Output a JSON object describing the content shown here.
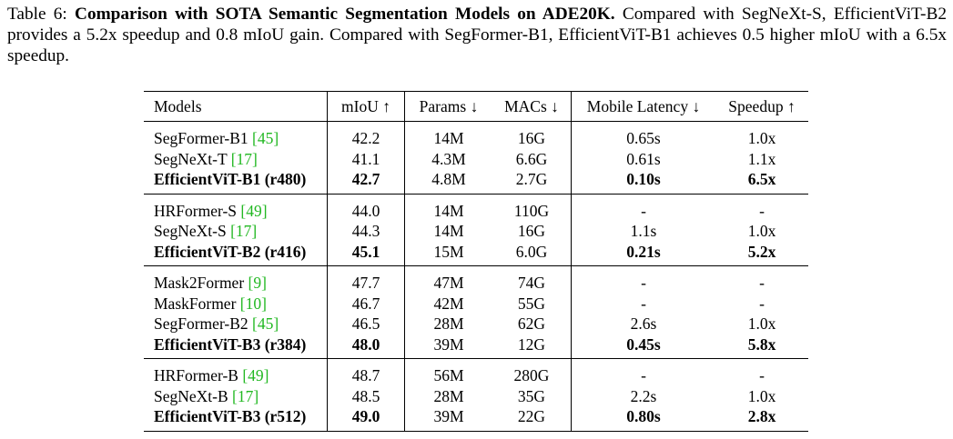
{
  "caption": {
    "prefix": "Table 6: ",
    "title": "Comparison with SOTA Semantic Segmentation Models on ADE20K.",
    "body": " Compared with SegNeXt-S, EfficientViT-B2 provides a 5.2x speedup and 0.8 mIoU gain. Compared with SegFormer-B1, EfficientViT-B1 achieves 0.5 higher mIoU with a 6.5x speedup."
  },
  "headers": {
    "models": "Models",
    "miou": "mIoU ↑",
    "params": "Params ↓",
    "macs": "MACs ↓",
    "latency": "Mobile Latency ↓",
    "speedup": "Speedup ↑"
  },
  "groups": [
    [
      {
        "name": "SegFormer-B1 ",
        "cite": "[45]",
        "miou": "42.2",
        "params": "14M",
        "macs": "16G",
        "latency": "0.65s",
        "speedup": "1.0x",
        "bold": false
      },
      {
        "name": "SegNeXt-T ",
        "cite": "[17]",
        "miou": "41.1",
        "params": "4.3M",
        "macs": "6.6G",
        "latency": "0.61s",
        "speedup": "1.1x",
        "bold": false
      },
      {
        "name": "EfficientViT-B1 (r480)",
        "cite": "",
        "miou": "42.7",
        "params": "4.8M",
        "macs": "2.7G",
        "latency": "0.10s",
        "speedup": "6.5x",
        "bold": true
      }
    ],
    [
      {
        "name": "HRFormer-S ",
        "cite": "[49]",
        "miou": "44.0",
        "params": "14M",
        "macs": "110G",
        "latency": "-",
        "speedup": "-",
        "bold": false
      },
      {
        "name": "SegNeXt-S ",
        "cite": "[17]",
        "miou": "44.3",
        "params": "14M",
        "macs": "16G",
        "latency": "1.1s",
        "speedup": "1.0x",
        "bold": false
      },
      {
        "name": "EfficientViT-B2 (r416)",
        "cite": "",
        "miou": "45.1",
        "params": "15M",
        "macs": "6.0G",
        "latency": "0.21s",
        "speedup": "5.2x",
        "bold": true
      }
    ],
    [
      {
        "name": "Mask2Former ",
        "cite": "[9]",
        "miou": "47.7",
        "params": "47M",
        "macs": "74G",
        "latency": "-",
        "speedup": "-",
        "bold": false
      },
      {
        "name": "MaskFormer ",
        "cite": "[10]",
        "miou": "46.7",
        "params": "42M",
        "macs": "55G",
        "latency": "-",
        "speedup": "-",
        "bold": false
      },
      {
        "name": "SegFormer-B2 ",
        "cite": "[45]",
        "miou": "46.5",
        "params": "28M",
        "macs": "62G",
        "latency": "2.6s",
        "speedup": "1.0x",
        "bold": false
      },
      {
        "name": "EfficientViT-B3 (r384)",
        "cite": "",
        "miou": "48.0",
        "params": "39M",
        "macs": "12G",
        "latency": "0.45s",
        "speedup": "5.8x",
        "bold": true
      }
    ],
    [
      {
        "name": "HRFormer-B ",
        "cite": "[49]",
        "miou": "48.7",
        "params": "56M",
        "macs": "280G",
        "latency": "-",
        "speedup": "-",
        "bold": false
      },
      {
        "name": "SegNeXt-B ",
        "cite": "[17]",
        "miou": "48.5",
        "params": "28M",
        "macs": "35G",
        "latency": "2.2s",
        "speedup": "1.0x",
        "bold": false
      },
      {
        "name": "EfficientViT-B3 (r512)",
        "cite": "",
        "miou": "49.0",
        "params": "39M",
        "macs": "22G",
        "latency": "0.80s",
        "speedup": "2.8x",
        "bold": true
      }
    ]
  ],
  "colors": {
    "citation": "#22b822",
    "text": "#000000",
    "background": "#ffffff"
  }
}
